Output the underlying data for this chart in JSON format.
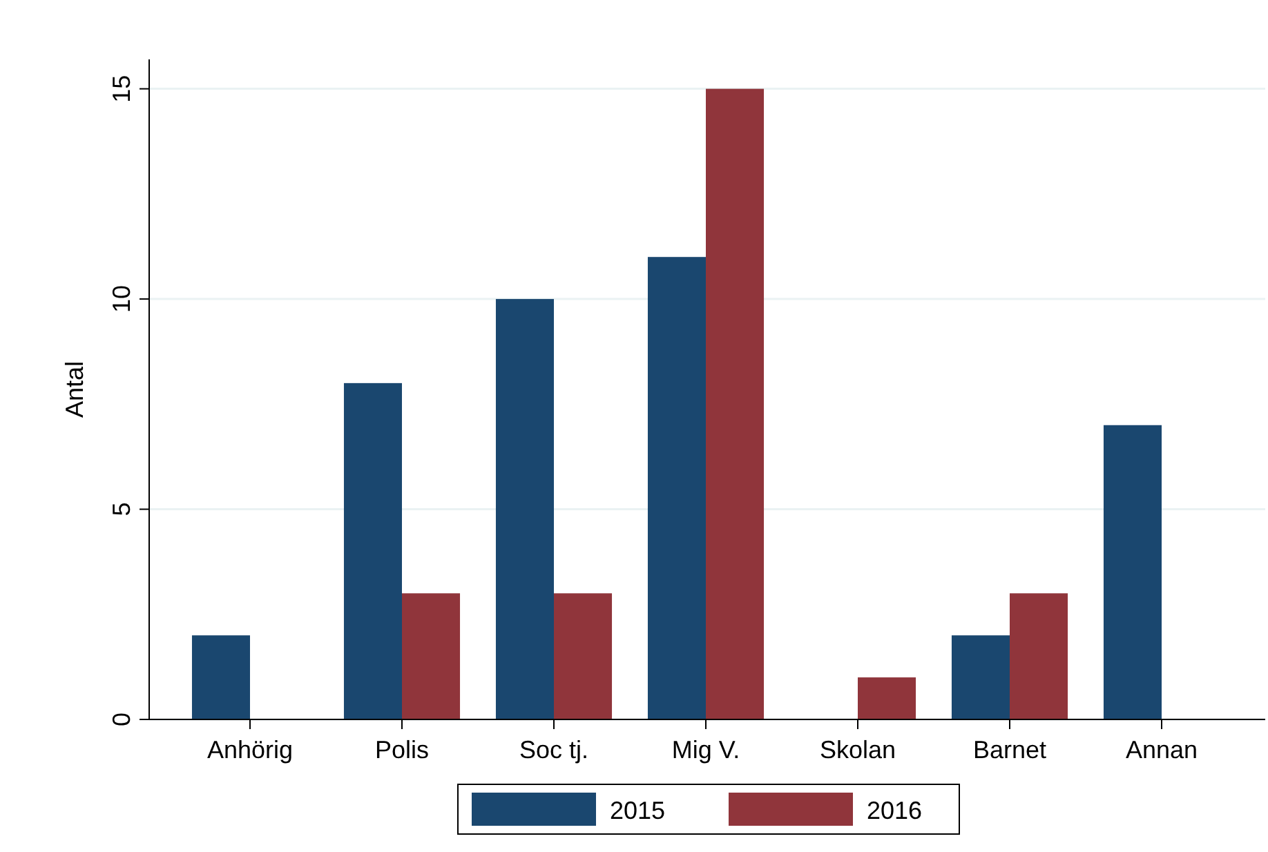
{
  "chart_data": {
    "type": "bar",
    "ylabel": "Antal",
    "categories": [
      "Anhörig",
      "Polis",
      "Soc tj.",
      "Mig V.",
      "Skolan",
      "Barnet",
      "Annan"
    ],
    "series": [
      {
        "name": "2015",
        "color": "#1a476f",
        "values": [
          2,
          8,
          10,
          11,
          0,
          2,
          7
        ]
      },
      {
        "name": "2016",
        "color": "#90353b",
        "values": [
          0,
          3,
          3,
          15,
          1,
          3,
          0
        ]
      }
    ],
    "ylim": [
      0,
      15.7
    ],
    "yticks": [
      0,
      5,
      10,
      15
    ],
    "grid": "y",
    "legend": "bottom"
  }
}
